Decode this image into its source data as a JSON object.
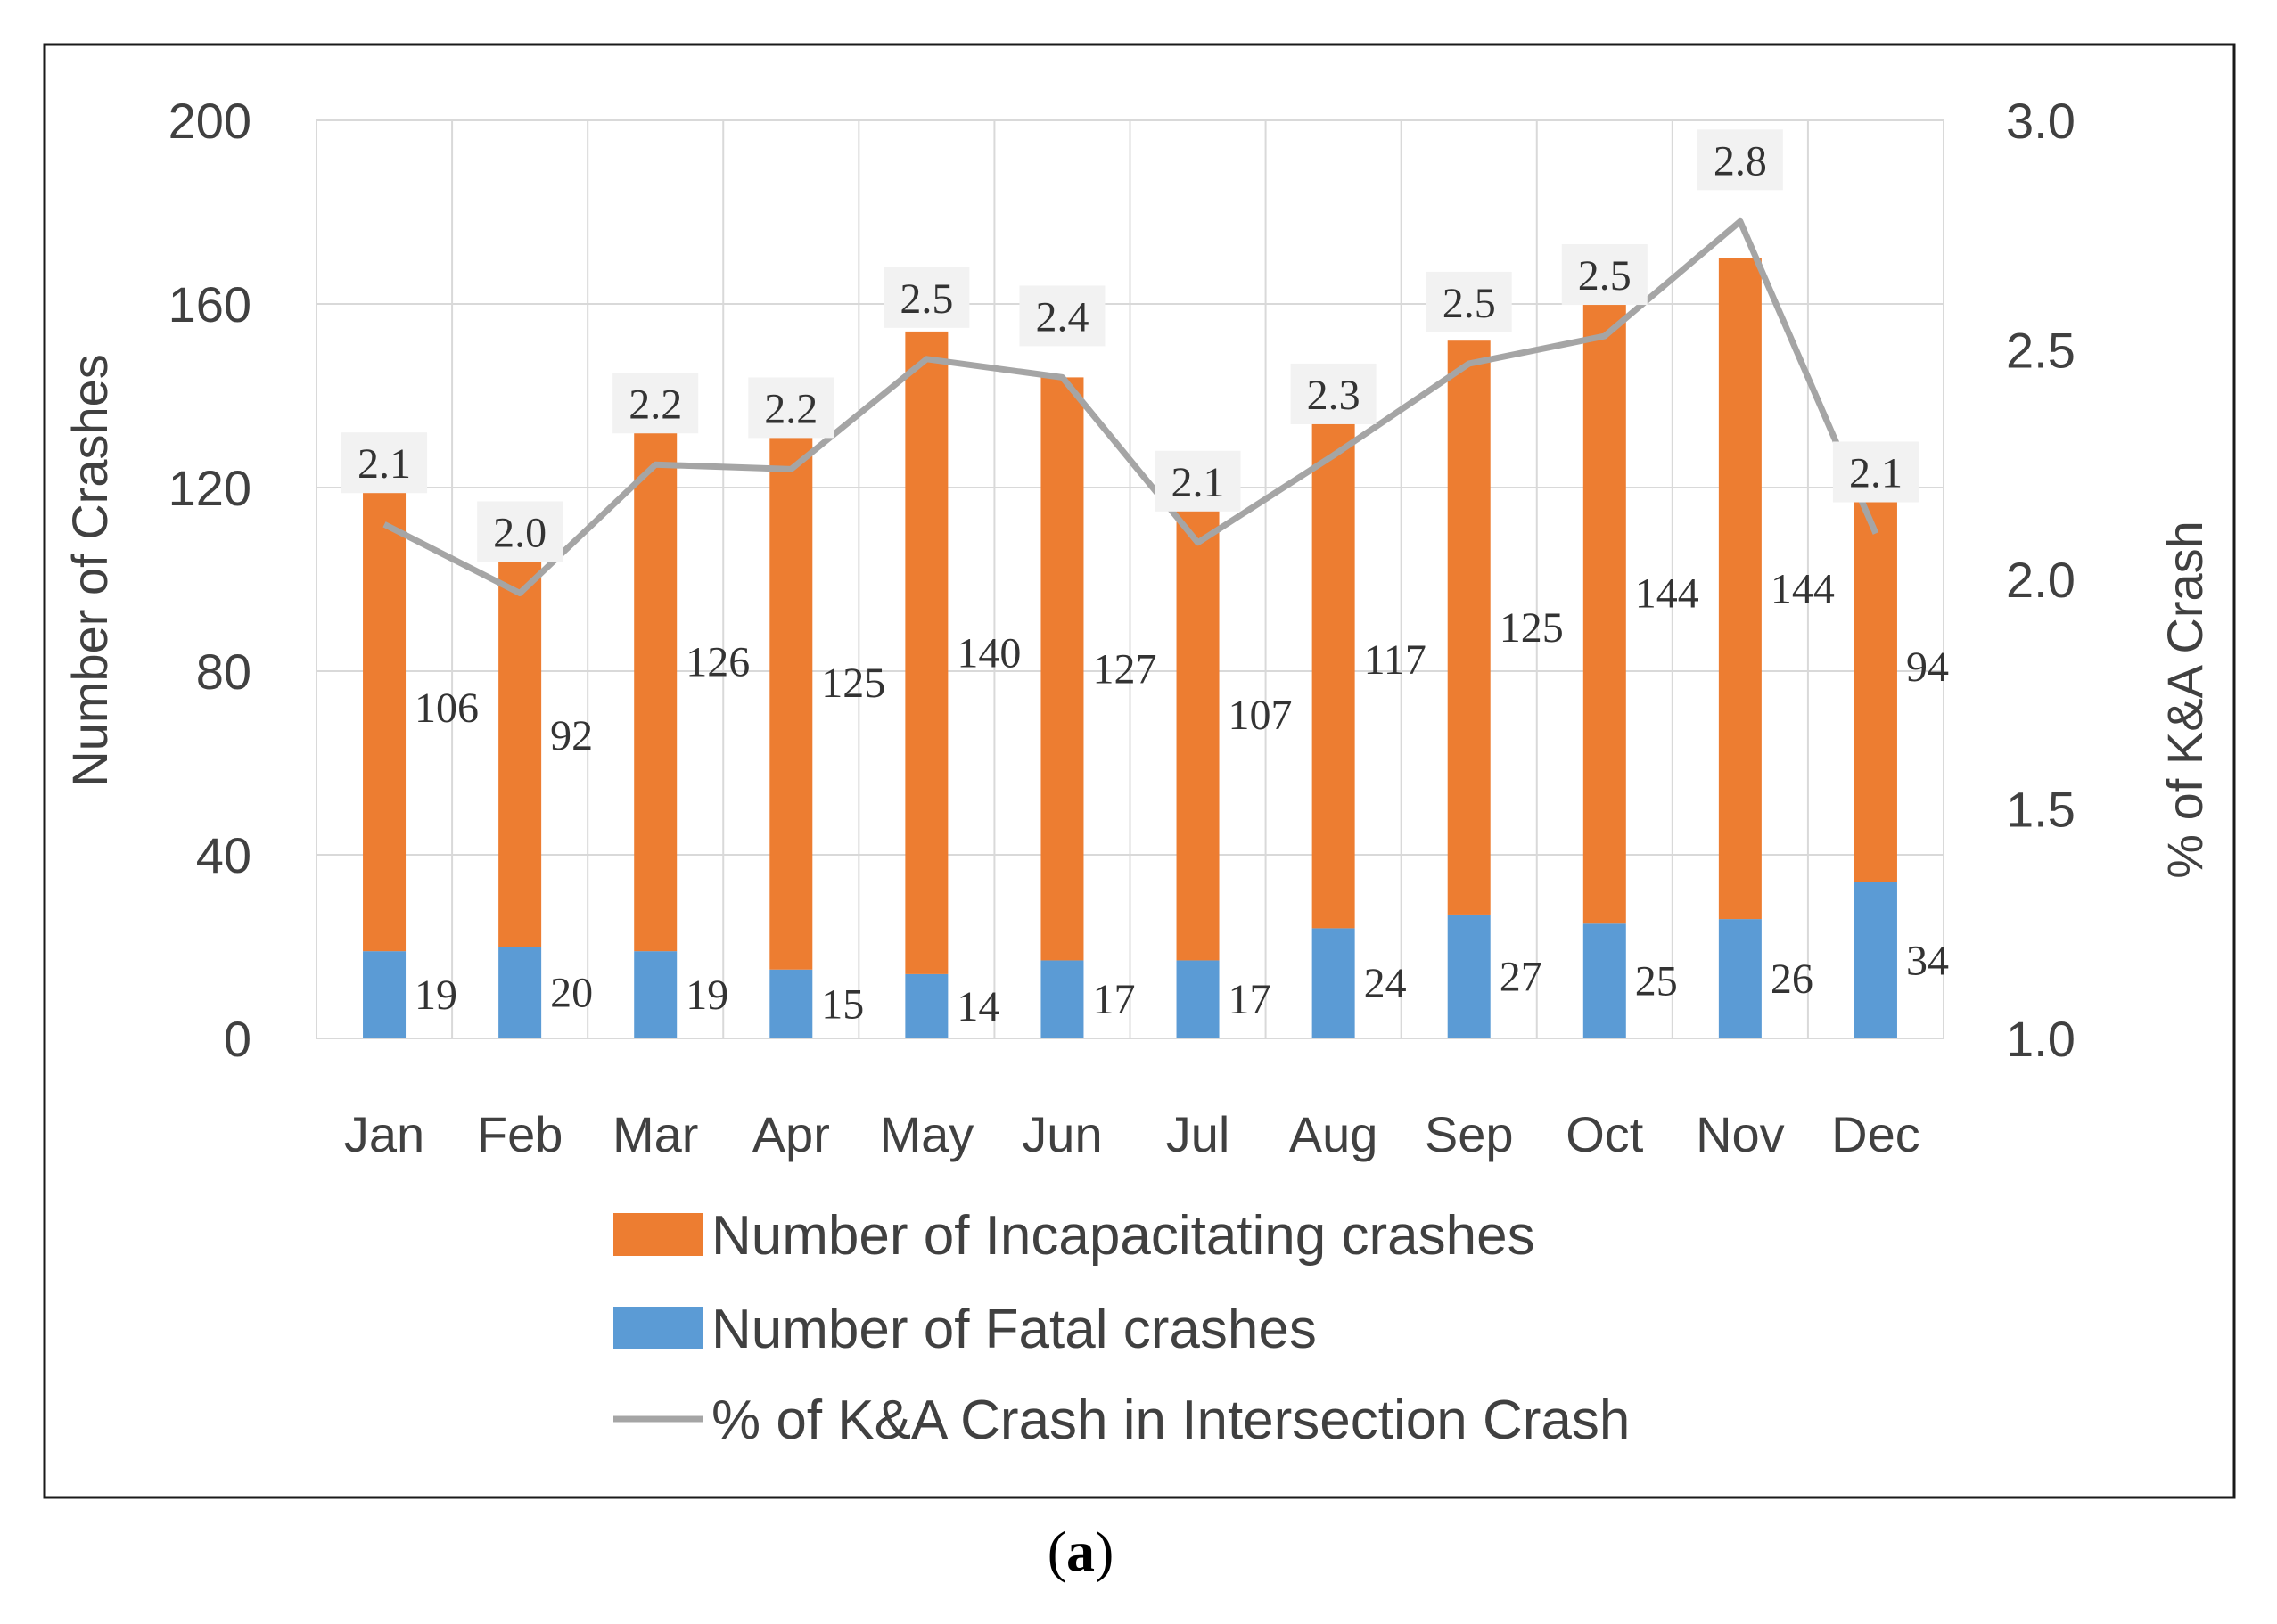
{
  "chart_data": {
    "type": "bar",
    "stacked": true,
    "categories": [
      "Jan",
      "Feb",
      "Mar",
      "Apr",
      "May",
      "Jun",
      "Jul",
      "Aug",
      "Sep",
      "Oct",
      "Nov",
      "Dec"
    ],
    "series": [
      {
        "name": "Number of Fatal crashes",
        "type": "bar",
        "axis": "left",
        "color": "#5b9bd5",
        "values": [
          19,
          20,
          19,
          15,
          14,
          17,
          17,
          24,
          27,
          25,
          26,
          34
        ],
        "labels": [
          "19",
          "20",
          "19",
          "15",
          "14",
          "17",
          "17",
          "24",
          "27",
          "25",
          "26",
          "34"
        ]
      },
      {
        "name": "Number of Incapacitating crashes",
        "type": "bar",
        "axis": "left",
        "color": "#ed7d31",
        "values": [
          106,
          92,
          126,
          125,
          140,
          127,
          107,
          117,
          125,
          144,
          144,
          94
        ],
        "labels": [
          "106",
          "92",
          "126",
          "125",
          "140",
          "127",
          "107",
          "117",
          "125",
          "144",
          "144",
          "94"
        ]
      },
      {
        "name": "% of K&A Crash in Intersection Crash",
        "type": "line",
        "axis": "right",
        "color": "#a5a5a5",
        "values": [
          2.12,
          1.97,
          2.25,
          2.24,
          2.48,
          2.44,
          2.08,
          2.27,
          2.47,
          2.53,
          2.78,
          2.1
        ],
        "labels": [
          "2.1",
          "2.0",
          "2.2",
          "2.2",
          "2.5",
          "2.4",
          "2.1",
          "2.3",
          "2.5",
          "2.5",
          "2.8",
          "2.1"
        ]
      }
    ],
    "ylabel": "Number of Crashes",
    "y2label": "% of K&A Crash",
    "ylim": [
      0,
      200
    ],
    "yticks": [
      "0",
      "40",
      "80",
      "120",
      "160",
      "200"
    ],
    "y2lim": [
      1.0,
      3.0
    ],
    "y2ticks": [
      "1.0",
      "1.5",
      "2.0",
      "2.5",
      "3.0"
    ],
    "grid": true,
    "legend_position": "bottom",
    "legend": [
      {
        "label": "Number of Incapacitating crashes",
        "color": "#ed7d31",
        "kind": "box"
      },
      {
        "label": "Number of Fatal crashes",
        "color": "#5b9bd5",
        "kind": "box"
      },
      {
        "label": "% of K&A Crash in Intersection Crash",
        "color": "#a5a5a5",
        "kind": "line"
      }
    ],
    "caption_open": "(",
    "caption_label": "a",
    "caption_close": ")"
  }
}
